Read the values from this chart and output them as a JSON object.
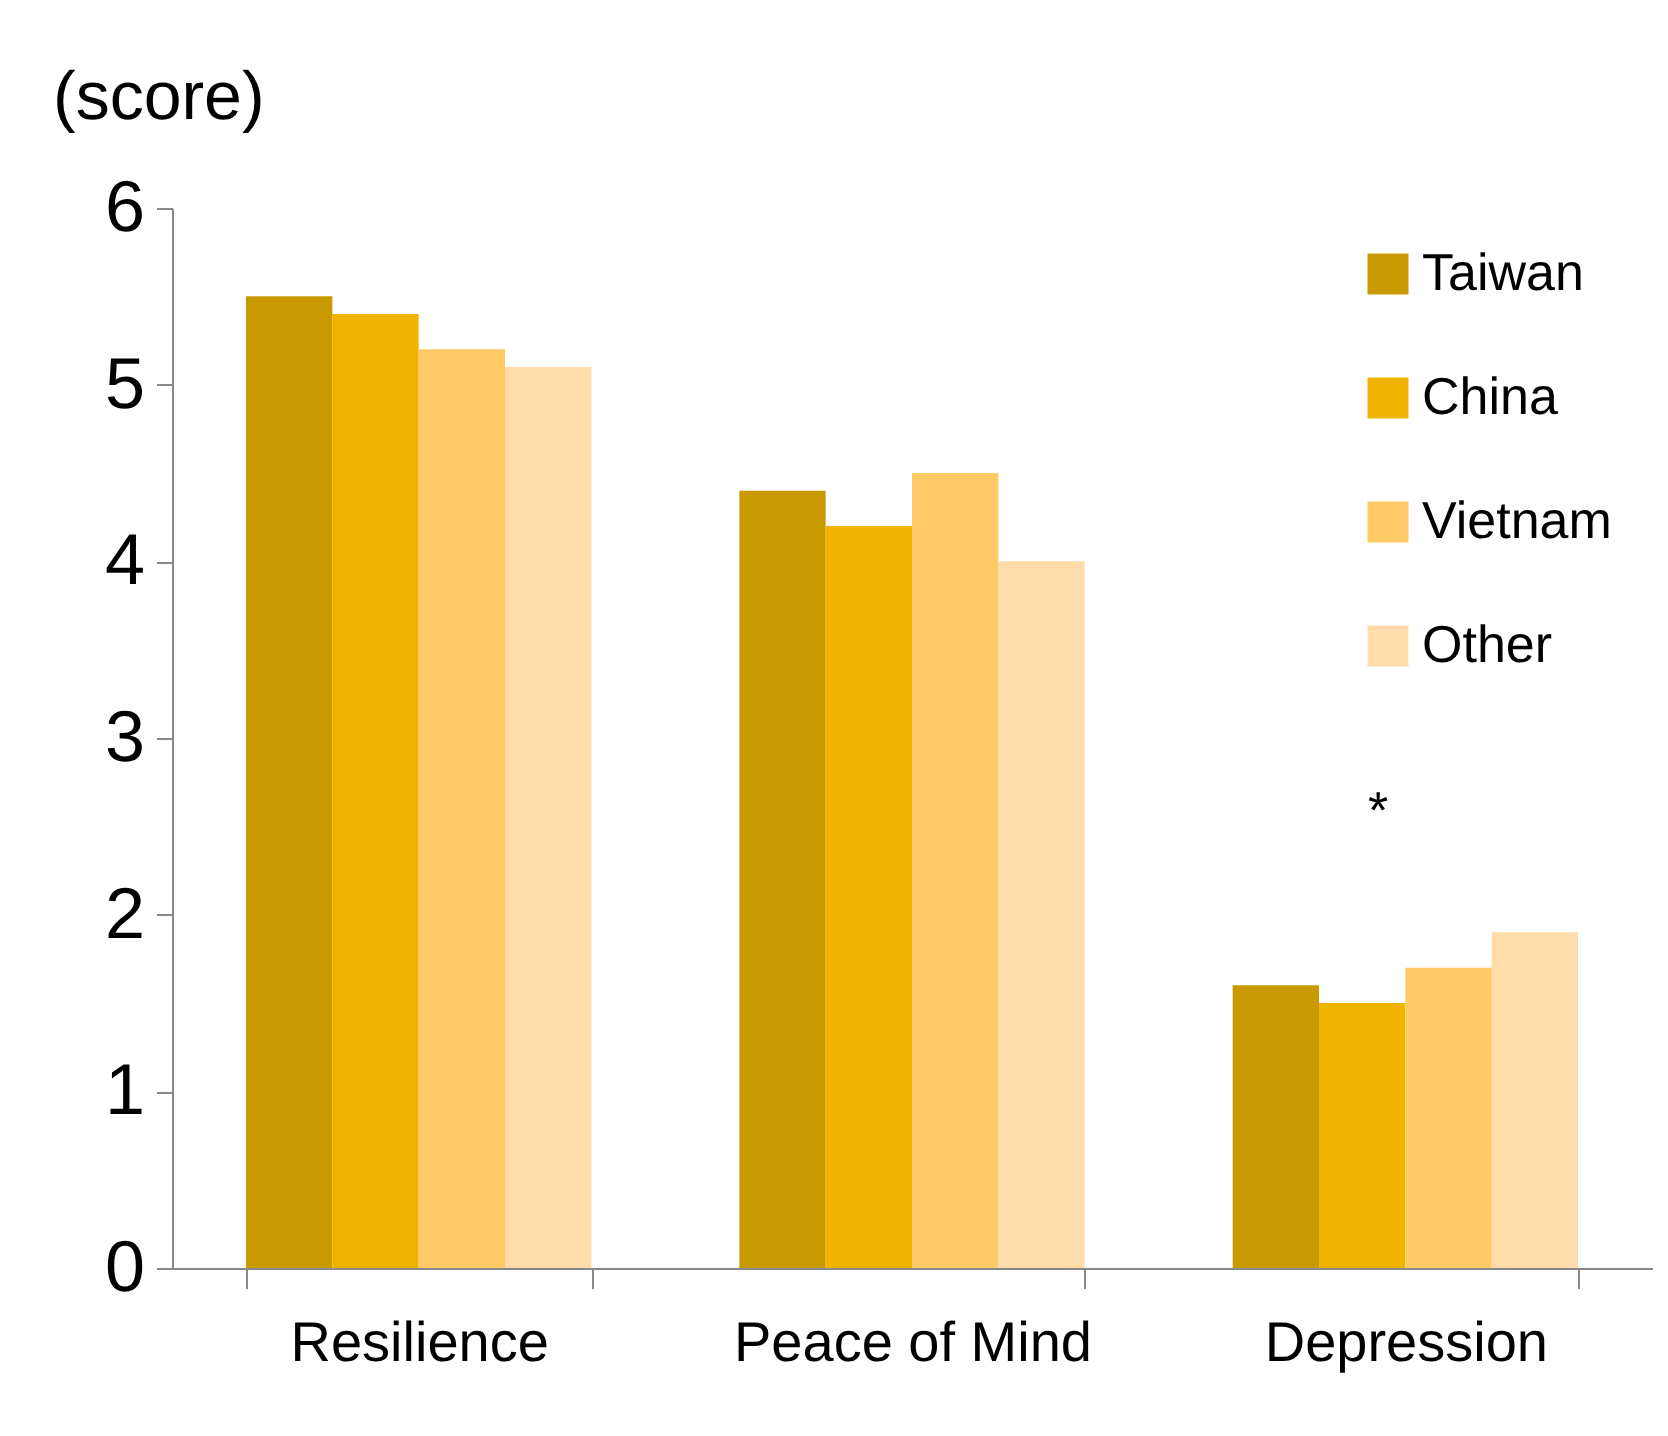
{
  "chart_data": {
    "type": "bar",
    "ylabel": "(score)",
    "categories": [
      "Resilience",
      "Peace of Mind",
      "Depression"
    ],
    "series": [
      {
        "name": "Taiwan",
        "color": "#c99a00",
        "values": [
          5.5,
          4.4,
          1.6
        ]
      },
      {
        "name": "China",
        "color": "#f0b400",
        "values": [
          5.4,
          4.2,
          1.5
        ]
      },
      {
        "name": "Vietnam",
        "color": "#ffc966",
        "values": [
          5.2,
          4.5,
          1.7
        ]
      },
      {
        "name": "Other",
        "color": "#ffdcaa",
        "values": [
          5.1,
          4.0,
          1.9
        ]
      }
    ],
    "ylim": [
      0,
      6
    ],
    "yticks": [
      0,
      1,
      2,
      3,
      4,
      5,
      6
    ],
    "grid": false,
    "legend": "top right",
    "annotations": [
      "*"
    ]
  }
}
